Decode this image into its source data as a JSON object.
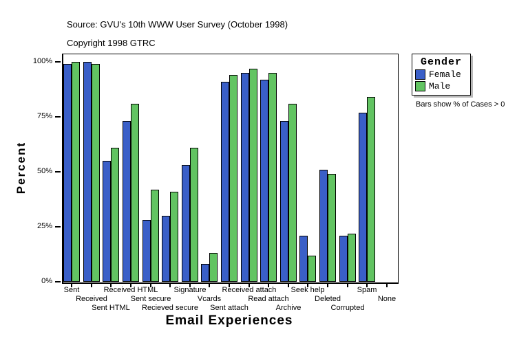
{
  "header": {
    "source_line": "Source: GVU's 10th WWW User Survey (October 1998)",
    "copyright_line": "Copyright 1998 GTRC"
  },
  "legend": {
    "title": "Gender",
    "entries": [
      {
        "label": "Female",
        "color": "#3A5FC8"
      },
      {
        "label": "Male",
        "color": "#62C462"
      }
    ],
    "note": "Bars show % of Cases > 0"
  },
  "chart_data": {
    "type": "bar",
    "title": "",
    "xlabel": "Email Experiences",
    "ylabel": "Percent",
    "ylim": [
      0,
      100
    ],
    "ytick_values": [
      0,
      25,
      50,
      75,
      100
    ],
    "ytick_labels": [
      "0%",
      "25%",
      "50%",
      "75%",
      "100%"
    ],
    "grid": false,
    "legend_position": "right",
    "categories": [
      "Sent",
      "Received",
      "Sent HTML",
      "Received HTML",
      "Sent secure",
      "Recieved secure",
      "Signature",
      "Vcards",
      "Sent attach",
      "Received attach",
      "Read attach",
      "Archive",
      "Seek help",
      "Deleted",
      "Corrupted",
      "Spam",
      "None"
    ],
    "series": [
      {
        "name": "Female",
        "color": "#3A5FC8",
        "values": [
          99,
          100,
          55,
          73,
          28,
          30,
          53,
          8,
          91,
          95,
          92,
          73,
          21,
          51,
          21,
          77,
          0
        ]
      },
      {
        "name": "Male",
        "color": "#62C462",
        "values": [
          100,
          99,
          61,
          81,
          42,
          41,
          61,
          13,
          94,
          97,
          95,
          81,
          12,
          49,
          22,
          84,
          0
        ]
      }
    ]
  }
}
